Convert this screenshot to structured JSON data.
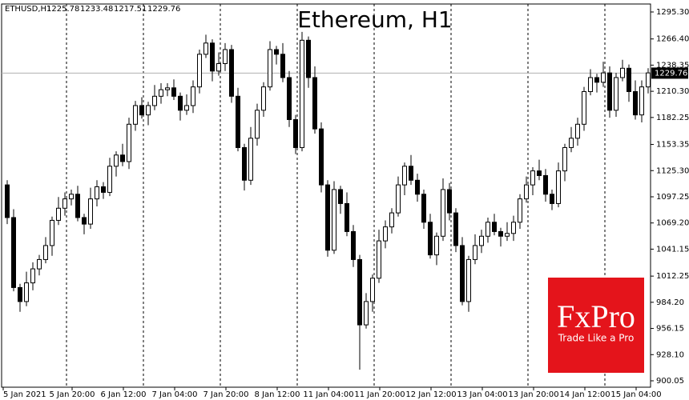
{
  "chart_data": {
    "type": "candlestick",
    "title": "Ethereum, H1",
    "symbol": "ETHUSD,H1",
    "last_bar": [
      1225.78,
      1233.48,
      1217.51,
      1229.76
    ],
    "current_price": 1229.76,
    "x_labels": [
      "5 Jan 2021",
      "5 Jan 20:00",
      "6 Jan 12:00",
      "7 Jan 04:00",
      "7 Jan 20:00",
      "8 Jan 12:00",
      "11 Jan 04:00",
      "11 Jan 20:00",
      "12 Jan 12:00",
      "13 Jan 04:00",
      "13 Jan 20:00",
      "14 Jan 12:00",
      "15 Jan 04:00"
    ],
    "open": [
      1110,
      1075,
      1000,
      985,
      1005,
      1020,
      1030,
      1045,
      1072,
      1085,
      1095,
      1100,
      1075,
      1068,
      1095,
      1108,
      1102,
      1130,
      1142,
      1135,
      1175,
      1195,
      1185,
      1195,
      1205,
      1212,
      1214,
      1205,
      1190,
      1195,
      1215,
      1250,
      1262,
      1232,
      1240,
      1255,
      1205,
      1150,
      1115,
      1160,
      1190,
      1215,
      1255,
      1250,
      1225,
      1180,
      1150,
      1265,
      1225,
      1170,
      1110,
      1040,
      1105,
      1090,
      1060,
      1030,
      960,
      985,
      1010,
      1050,
      1065,
      1080,
      1110,
      1130,
      1115,
      1100,
      1070,
      1035,
      1055,
      1105,
      1080,
      1045,
      985,
      1030,
      1045,
      1055,
      1070,
      1060,
      1055,
      1058,
      1070,
      1095,
      1110,
      1125,
      1120,
      1100,
      1090,
      1125,
      1150,
      1160,
      1175,
      1210,
      1225,
      1220,
      1230,
      1190,
      1225,
      1235,
      1210,
      1185,
      1215
    ],
    "high": [
      1115,
      1084,
      1004,
      1017,
      1027,
      1035,
      1054,
      1076,
      1097,
      1102,
      1105,
      1109,
      1079,
      1107,
      1115,
      1113,
      1139,
      1146,
      1154,
      1182,
      1200,
      1204,
      1199,
      1217,
      1219,
      1219,
      1223,
      1209,
      1207,
      1222,
      1255,
      1271,
      1266,
      1252,
      1262,
      1260,
      1214,
      1154,
      1172,
      1197,
      1220,
      1264,
      1259,
      1262,
      1232,
      1185,
      1274,
      1269,
      1237,
      1177,
      1115,
      1114,
      1109,
      1102,
      1067,
      1035,
      994,
      1014,
      1062,
      1072,
      1085,
      1119,
      1134,
      1142,
      1122,
      1105,
      1079,
      1059,
      1117,
      1112,
      1085,
      1054,
      1034,
      1057,
      1062,
      1075,
      1079,
      1064,
      1070,
      1077,
      1100,
      1119,
      1129,
      1137,
      1127,
      1105,
      1134,
      1154,
      1172,
      1182,
      1215,
      1234,
      1229,
      1242,
      1237,
      1230,
      1244,
      1239,
      1222,
      1222,
      1235
    ],
    "low": [
      1068,
      996,
      974,
      980,
      997,
      1013,
      1026,
      1034,
      1067,
      1077,
      1088,
      1071,
      1057,
      1063,
      1087,
      1095,
      1098,
      1119,
      1130,
      1127,
      1168,
      1181,
      1174,
      1190,
      1197,
      1205,
      1201,
      1179,
      1185,
      1187,
      1208,
      1246,
      1221,
      1227,
      1232,
      1198,
      1146,
      1104,
      1110,
      1152,
      1183,
      1211,
      1239,
      1220,
      1172,
      1143,
      1146,
      1214,
      1165,
      1102,
      1033,
      1036,
      1079,
      1055,
      1022,
      912,
      956,
      974,
      1005,
      1042,
      1058,
      1076,
      1099,
      1110,
      1092,
      1063,
      1031,
      1024,
      1050,
      1072,
      1038,
      981,
      974,
      1025,
      1037,
      1048,
      1056,
      1044,
      1050,
      1050,
      1063,
      1091,
      1099,
      1115,
      1092,
      1083,
      1086,
      1114,
      1145,
      1152,
      1168,
      1206,
      1209,
      1215,
      1182,
      1183,
      1221,
      1199,
      1180,
      1177,
      1208
    ],
    "close": [
      1075,
      1000,
      985,
      1005,
      1020,
      1030,
      1045,
      1072,
      1085,
      1095,
      1100,
      1075,
      1068,
      1095,
      1108,
      1102,
      1130,
      1142,
      1135,
      1175,
      1195,
      1185,
      1195,
      1205,
      1212,
      1214,
      1205,
      1190,
      1195,
      1215,
      1250,
      1262,
      1232,
      1240,
      1255,
      1205,
      1150,
      1115,
      1160,
      1190,
      1215,
      1255,
      1250,
      1225,
      1180,
      1150,
      1265,
      1225,
      1170,
      1110,
      1040,
      1105,
      1090,
      1060,
      1030,
      960,
      985,
      1010,
      1050,
      1065,
      1080,
      1110,
      1130,
      1115,
      1100,
      1070,
      1035,
      1055,
      1105,
      1080,
      1045,
      985,
      1030,
      1045,
      1055,
      1070,
      1060,
      1055,
      1058,
      1070,
      1095,
      1110,
      1125,
      1120,
      1100,
      1090,
      1125,
      1150,
      1160,
      1175,
      1210,
      1225,
      1220,
      1230,
      1190,
      1225,
      1235,
      1210,
      1185,
      1215,
      1230
    ],
    "ylim": [
      893.2,
      1303.85
    ],
    "yticks": [
      {
        "value": 1295.3,
        "label": "1295.30"
      },
      {
        "value": 1266.4,
        "label": "1266.40"
      },
      1238.35,
      {
        "value": 1210.3,
        "label": "1210.30"
      },
      1182.25,
      1153.35,
      {
        "value": 1125.3,
        "label": "1125.30"
      },
      1097.25,
      {
        "value": 1069.2,
        "label": "1069.20"
      },
      1041.15,
      1012.25,
      {
        "value": 984.2,
        "label": "984.20"
      },
      956.15,
      {
        "value": 928.1,
        "label": "928.10"
      },
      900.05
    ],
    "up_color": "#ffffff",
    "down_color": "#000000"
  },
  "branding": {
    "name": "FxPro",
    "tagline": "Trade Like a Pro",
    "color": "#e4141b"
  }
}
